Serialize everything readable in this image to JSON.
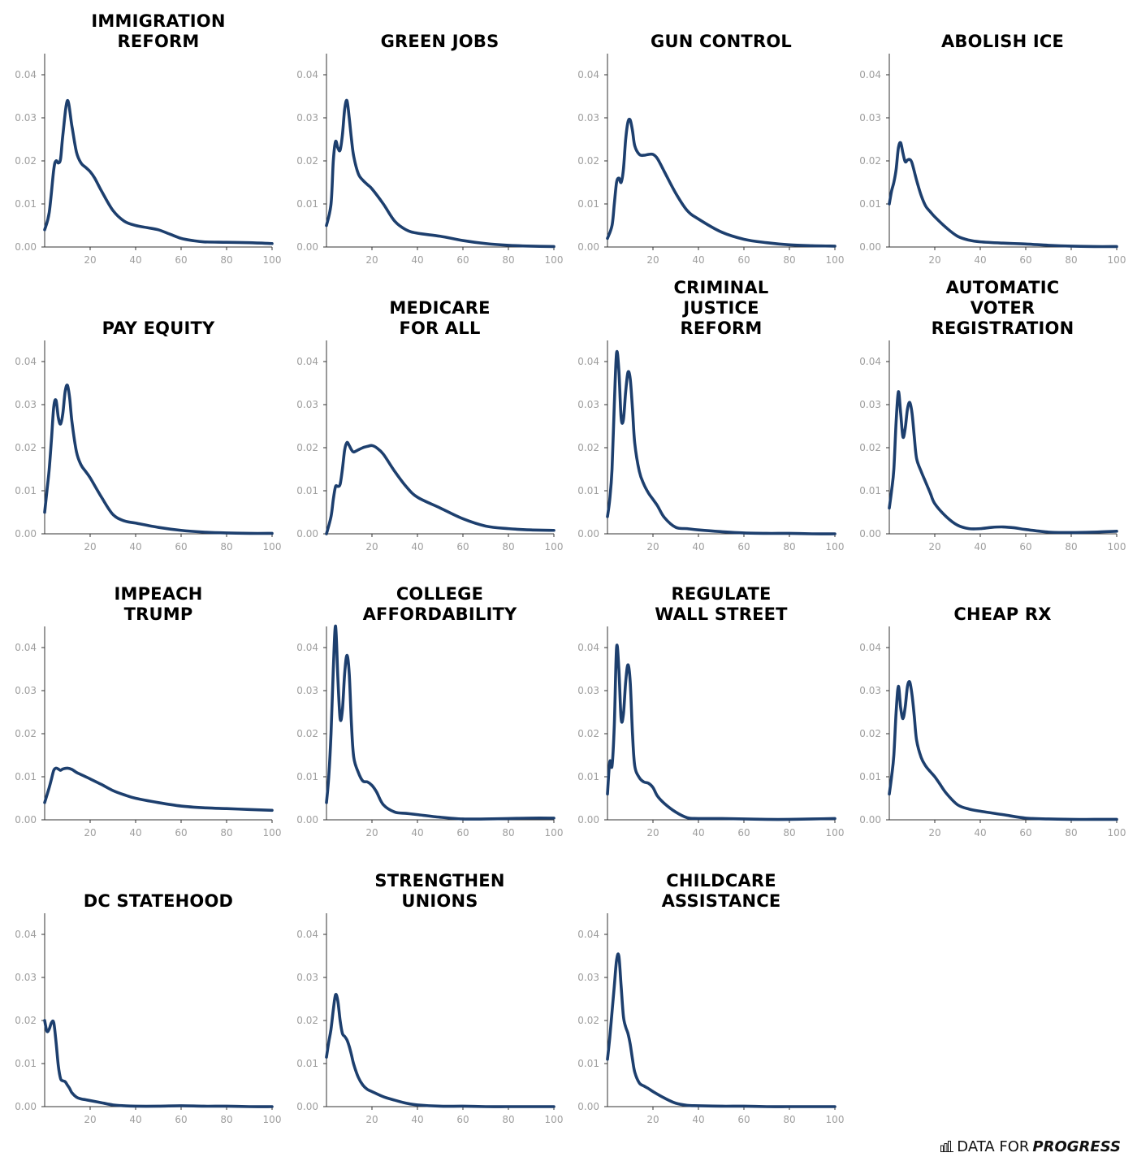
{
  "brand": {
    "prefix": "DATA FOR",
    "suffix": "PROGRESS",
    "icon": "bar-chart-icon"
  },
  "colors": {
    "line": "#1d3f6e",
    "axis": "#333333",
    "tick": "#9e9e9e"
  },
  "chart_data": [
    {
      "type": "line",
      "title": "IMMIGRATION\nREFORM",
      "xlim": [
        0,
        100
      ],
      "ylim": [
        0,
        0.045
      ],
      "xticks": [
        20,
        40,
        60,
        80,
        100
      ],
      "yticks": [
        "0.00",
        "0.01",
        "0.02",
        "0.03",
        "0.04"
      ],
      "x": [
        0,
        2,
        4,
        5,
        6,
        7,
        8,
        10,
        12,
        14,
        16,
        18,
        20,
        22,
        25,
        30,
        35,
        40,
        45,
        50,
        55,
        60,
        65,
        70,
        80,
        90,
        100
      ],
      "y": [
        0.004,
        0.008,
        0.018,
        0.02,
        0.0195,
        0.0205,
        0.026,
        0.034,
        0.028,
        0.022,
        0.0195,
        0.0185,
        0.0175,
        0.016,
        0.013,
        0.0085,
        0.006,
        0.005,
        0.0045,
        0.004,
        0.003,
        0.002,
        0.0015,
        0.0012,
        0.0011,
        0.001,
        0.0008
      ]
    },
    {
      "type": "line",
      "title": "GREEN JOBS",
      "xlim": [
        0,
        100
      ],
      "ylim": [
        0,
        0.045
      ],
      "xticks": [
        20,
        40,
        60,
        80,
        100
      ],
      "yticks": [
        "0.00",
        "0.01",
        "0.02",
        "0.03",
        "0.04"
      ],
      "x": [
        0,
        2,
        3,
        4,
        5,
        6,
        7,
        8,
        9,
        10,
        11,
        12,
        14,
        16,
        18,
        20,
        25,
        30,
        35,
        40,
        50,
        60,
        70,
        80,
        90,
        100
      ],
      "y": [
        0.005,
        0.01,
        0.02,
        0.0245,
        0.023,
        0.0225,
        0.026,
        0.032,
        0.034,
        0.03,
        0.025,
        0.021,
        0.017,
        0.0155,
        0.0145,
        0.0135,
        0.01,
        0.006,
        0.004,
        0.0032,
        0.0025,
        0.0015,
        0.0008,
        0.0004,
        0.0002,
        0.0001
      ]
    },
    {
      "type": "line",
      "title": "GUN CONTROL",
      "xlim": [
        0,
        100
      ],
      "ylim": [
        0,
        0.045
      ],
      "xticks": [
        20,
        40,
        60,
        80,
        100
      ],
      "yticks": [
        "0.00",
        "0.01",
        "0.02",
        "0.03",
        "0.04"
      ],
      "x": [
        0,
        2,
        3,
        4,
        5,
        6,
        7,
        8,
        9,
        10,
        11,
        12,
        14,
        16,
        18,
        20,
        22,
        25,
        30,
        35,
        40,
        50,
        60,
        70,
        80,
        90,
        100
      ],
      "y": [
        0.002,
        0.005,
        0.01,
        0.015,
        0.016,
        0.015,
        0.018,
        0.025,
        0.029,
        0.0295,
        0.027,
        0.0235,
        0.0215,
        0.0213,
        0.0215,
        0.0215,
        0.0205,
        0.0175,
        0.0125,
        0.0085,
        0.0065,
        0.0035,
        0.0018,
        0.001,
        0.0005,
        0.0003,
        0.0002
      ]
    },
    {
      "type": "line",
      "title": "ABOLISH ICE",
      "xlim": [
        0,
        100
      ],
      "ylim": [
        0,
        0.045
      ],
      "xticks": [
        20,
        40,
        60,
        80,
        100
      ],
      "yticks": [
        "0.00",
        "0.01",
        "0.02",
        "0.03",
        "0.04"
      ],
      "x": [
        0,
        1,
        2,
        3,
        4,
        5,
        6,
        7,
        8,
        9,
        10,
        12,
        14,
        16,
        18,
        20,
        25,
        30,
        35,
        40,
        50,
        60,
        70,
        80,
        90,
        100
      ],
      "y": [
        0.01,
        0.013,
        0.015,
        0.018,
        0.023,
        0.0242,
        0.0218,
        0.0198,
        0.0202,
        0.0203,
        0.0195,
        0.0155,
        0.012,
        0.0095,
        0.0082,
        0.007,
        0.0045,
        0.0025,
        0.0016,
        0.0012,
        0.0009,
        0.0007,
        0.0004,
        0.0002,
        0.0001,
        0.0001
      ]
    },
    {
      "type": "line",
      "title": "PAY EQUITY",
      "xlim": [
        0,
        100
      ],
      "ylim": [
        0,
        0.045
      ],
      "xticks": [
        20,
        40,
        60,
        80,
        100
      ],
      "yticks": [
        "0.00",
        "0.01",
        "0.02",
        "0.03",
        "0.04"
      ],
      "x": [
        0,
        1,
        2,
        3,
        4,
        5,
        6,
        7,
        8,
        9,
        10,
        11,
        12,
        14,
        16,
        18,
        20,
        25,
        30,
        35,
        40,
        50,
        60,
        70,
        80,
        90,
        100
      ],
      "y": [
        0.005,
        0.01,
        0.015,
        0.022,
        0.0295,
        0.031,
        0.027,
        0.0255,
        0.028,
        0.033,
        0.0345,
        0.0315,
        0.026,
        0.019,
        0.016,
        0.0145,
        0.013,
        0.0085,
        0.0045,
        0.003,
        0.0025,
        0.0015,
        0.0008,
        0.0004,
        0.0002,
        0.0001,
        0.0001
      ]
    },
    {
      "type": "line",
      "title": "MEDICARE\nFOR ALL",
      "xlim": [
        0,
        100
      ],
      "ylim": [
        0,
        0.045
      ],
      "xticks": [
        20,
        40,
        60,
        80,
        100
      ],
      "yticks": [
        "0.00",
        "0.01",
        "0.02",
        "0.03",
        "0.04"
      ],
      "x": [
        0,
        2,
        3,
        4,
        5,
        6,
        7,
        8,
        9,
        10,
        11,
        12,
        14,
        16,
        18,
        20,
        22,
        25,
        30,
        35,
        40,
        50,
        60,
        70,
        80,
        90,
        100
      ],
      "y": [
        0.0,
        0.004,
        0.008,
        0.011,
        0.011,
        0.0115,
        0.015,
        0.0195,
        0.0212,
        0.0205,
        0.0195,
        0.019,
        0.0195,
        0.02,
        0.0203,
        0.0205,
        0.02,
        0.0185,
        0.0145,
        0.011,
        0.0085,
        0.006,
        0.0035,
        0.0018,
        0.0012,
        0.0009,
        0.0008
      ]
    },
    {
      "type": "line",
      "title": "CRIMINAL\nJUSTICE\nREFORM",
      "xlim": [
        0,
        100
      ],
      "ylim": [
        0,
        0.045
      ],
      "xticks": [
        20,
        40,
        60,
        80,
        100
      ],
      "yticks": [
        "0.00",
        "0.01",
        "0.02",
        "0.03",
        "0.04"
      ],
      "x": [
        0,
        1,
        2,
        3,
        4,
        5,
        6,
        7,
        8,
        9,
        10,
        11,
        12,
        14,
        16,
        18,
        20,
        22,
        25,
        30,
        35,
        40,
        50,
        60,
        70,
        80,
        90,
        100
      ],
      "y": [
        0.004,
        0.008,
        0.015,
        0.03,
        0.042,
        0.038,
        0.027,
        0.0265,
        0.033,
        0.0375,
        0.036,
        0.029,
        0.021,
        0.0145,
        0.0115,
        0.0095,
        0.008,
        0.0065,
        0.0038,
        0.0015,
        0.0012,
        0.0009,
        0.0005,
        0.0002,
        0.0001,
        0.0001,
        0.0,
        0.0
      ]
    },
    {
      "type": "line",
      "title": "AUTOMATIC\nVOTER\nREGISTRATION",
      "xlim": [
        0,
        100
      ],
      "ylim": [
        0,
        0.045
      ],
      "xticks": [
        20,
        40,
        60,
        80,
        100
      ],
      "yticks": [
        "0.00",
        "0.01",
        "0.02",
        "0.03",
        "0.04"
      ],
      "x": [
        0,
        1,
        2,
        3,
        4,
        5,
        6,
        7,
        8,
        9,
        10,
        11,
        12,
        14,
        16,
        18,
        20,
        25,
        30,
        35,
        40,
        45,
        50,
        55,
        60,
        70,
        80,
        90,
        100
      ],
      "y": [
        0.006,
        0.01,
        0.015,
        0.026,
        0.033,
        0.028,
        0.0225,
        0.0245,
        0.029,
        0.0305,
        0.028,
        0.0225,
        0.0175,
        0.0145,
        0.012,
        0.0095,
        0.007,
        0.004,
        0.002,
        0.0012,
        0.0012,
        0.0015,
        0.0016,
        0.0014,
        0.001,
        0.0004,
        0.0003,
        0.0004,
        0.0006
      ]
    },
    {
      "type": "line",
      "title": "IMPEACH\nTRUMP",
      "xlim": [
        0,
        100
      ],
      "ylim": [
        0,
        0.045
      ],
      "xticks": [
        20,
        40,
        60,
        80,
        100
      ],
      "yticks": [
        "0.00",
        "0.01",
        "0.02",
        "0.03",
        "0.04"
      ],
      "x": [
        0,
        2,
        3,
        4,
        5,
        6,
        7,
        8,
        10,
        12,
        14,
        16,
        18,
        20,
        25,
        30,
        35,
        40,
        50,
        60,
        70,
        80,
        90,
        100
      ],
      "y": [
        0.004,
        0.0075,
        0.0095,
        0.0115,
        0.012,
        0.0118,
        0.0115,
        0.0118,
        0.012,
        0.0117,
        0.011,
        0.0105,
        0.01,
        0.0095,
        0.0082,
        0.0068,
        0.0058,
        0.005,
        0.004,
        0.0032,
        0.0028,
        0.0026,
        0.0024,
        0.0022
      ]
    },
    {
      "type": "line",
      "title": "COLLEGE\nAFFORDABILITY",
      "xlim": [
        0,
        100
      ],
      "ylim": [
        0,
        0.045
      ],
      "xticks": [
        20,
        40,
        60,
        80,
        100
      ],
      "yticks": [
        "0.00",
        "0.01",
        "0.02",
        "0.03",
        "0.04"
      ],
      "x": [
        0,
        1,
        2,
        3,
        4,
        5,
        6,
        7,
        8,
        9,
        10,
        11,
        12,
        14,
        16,
        18,
        20,
        22,
        25,
        30,
        35,
        40,
        50,
        60,
        70,
        80,
        90,
        100
      ],
      "y": [
        0.004,
        0.01,
        0.02,
        0.035,
        0.045,
        0.033,
        0.0235,
        0.0255,
        0.034,
        0.0382,
        0.034,
        0.022,
        0.0145,
        0.011,
        0.009,
        0.0088,
        0.008,
        0.0065,
        0.0035,
        0.0018,
        0.0015,
        0.0012,
        0.0006,
        0.0002,
        0.0002,
        0.0003,
        0.0004,
        0.0004
      ]
    },
    {
      "type": "line",
      "title": "REGULATE\nWALL STREET",
      "xlim": [
        0,
        100
      ],
      "ylim": [
        0,
        0.045
      ],
      "xticks": [
        20,
        40,
        60,
        80,
        100
      ],
      "yticks": [
        "0.00",
        "0.01",
        "0.02",
        "0.03",
        "0.04"
      ],
      "x": [
        0,
        1,
        2,
        3,
        4,
        5,
        6,
        7,
        8,
        9,
        10,
        11,
        12,
        14,
        16,
        18,
        20,
        22,
        25,
        30,
        35,
        40,
        50,
        60,
        70,
        80,
        90,
        100
      ],
      "y": [
        0.006,
        0.0135,
        0.0125,
        0.022,
        0.04,
        0.035,
        0.0235,
        0.0245,
        0.032,
        0.036,
        0.032,
        0.02,
        0.0125,
        0.0098,
        0.0088,
        0.0085,
        0.0075,
        0.0055,
        0.0038,
        0.0018,
        0.0005,
        0.0003,
        0.0003,
        0.0002,
        0.0001,
        0.0001,
        0.0002,
        0.0003
      ]
    },
    {
      "type": "line",
      "title": "CHEAP RX",
      "xlim": [
        0,
        100
      ],
      "ylim": [
        0,
        0.045
      ],
      "xticks": [
        20,
        40,
        60,
        80,
        100
      ],
      "yticks": [
        "0.00",
        "0.01",
        "0.02",
        "0.03",
        "0.04"
      ],
      "x": [
        0,
        1,
        2,
        3,
        4,
        5,
        6,
        7,
        8,
        9,
        10,
        11,
        12,
        14,
        16,
        18,
        20,
        22,
        25,
        30,
        35,
        40,
        50,
        60,
        70,
        80,
        90,
        100
      ],
      "y": [
        0.006,
        0.01,
        0.015,
        0.025,
        0.031,
        0.026,
        0.0235,
        0.0262,
        0.031,
        0.032,
        0.029,
        0.024,
        0.0185,
        0.0145,
        0.0125,
        0.0112,
        0.01,
        0.0085,
        0.0062,
        0.0035,
        0.0025,
        0.002,
        0.0012,
        0.0004,
        0.0002,
        0.0001,
        0.0001,
        0.0001
      ]
    },
    {
      "type": "line",
      "title": "DC STATEHOOD",
      "xlim": [
        0,
        100
      ],
      "ylim": [
        0,
        0.045
      ],
      "xticks": [
        20,
        40,
        60,
        80,
        100
      ],
      "yticks": [
        "0.00",
        "0.01",
        "0.02",
        "0.03",
        "0.04"
      ],
      "x": [
        0,
        1,
        2,
        3,
        4,
        5,
        6,
        7,
        8,
        9,
        10,
        11,
        12,
        14,
        16,
        18,
        20,
        25,
        30,
        35,
        40,
        50,
        60,
        70,
        80,
        90,
        100
      ],
      "y": [
        0.02,
        0.0175,
        0.018,
        0.0195,
        0.0195,
        0.015,
        0.0095,
        0.0065,
        0.006,
        0.0058,
        0.005,
        0.0042,
        0.0032,
        0.0022,
        0.0018,
        0.0016,
        0.0014,
        0.0009,
        0.0004,
        0.0002,
        0.0001,
        0.0001,
        0.0002,
        0.0001,
        0.0001,
        0.0,
        0.0
      ]
    },
    {
      "type": "line",
      "title": "STRENGTHEN\nUNIONS",
      "xlim": [
        0,
        100
      ],
      "ylim": [
        0,
        0.045
      ],
      "xticks": [
        20,
        40,
        60,
        80,
        100
      ],
      "yticks": [
        "0.00",
        "0.01",
        "0.02",
        "0.03",
        "0.04"
      ],
      "x": [
        0,
        1,
        2,
        3,
        4,
        5,
        6,
        7,
        8,
        9,
        10,
        11,
        12,
        14,
        16,
        18,
        20,
        25,
        30,
        35,
        40,
        50,
        60,
        70,
        80,
        90,
        100
      ],
      "y": [
        0.0115,
        0.015,
        0.018,
        0.0225,
        0.026,
        0.0245,
        0.02,
        0.017,
        0.0163,
        0.0155,
        0.014,
        0.012,
        0.0098,
        0.0068,
        0.005,
        0.004,
        0.0035,
        0.0023,
        0.0015,
        0.0008,
        0.0004,
        0.0001,
        0.0001,
        0.0,
        0.0,
        0.0,
        0.0
      ]
    },
    {
      "type": "line",
      "title": "CHILDCARE\nASSISTANCE",
      "xlim": [
        0,
        100
      ],
      "ylim": [
        0,
        0.045
      ],
      "xticks": [
        20,
        40,
        60,
        80,
        100
      ],
      "yticks": [
        "0.00",
        "0.01",
        "0.02",
        "0.03",
        "0.04"
      ],
      "x": [
        0,
        1,
        2,
        3,
        4,
        5,
        6,
        7,
        8,
        9,
        10,
        11,
        12,
        14,
        16,
        18,
        20,
        25,
        30,
        35,
        40,
        50,
        60,
        70,
        80,
        90,
        100
      ],
      "y": [
        0.011,
        0.016,
        0.022,
        0.028,
        0.034,
        0.035,
        0.028,
        0.021,
        0.0185,
        0.017,
        0.0145,
        0.011,
        0.008,
        0.0055,
        0.0048,
        0.0042,
        0.0035,
        0.002,
        0.0008,
        0.0003,
        0.0002,
        0.0001,
        0.0001,
        0.0,
        0.0,
        0.0,
        0.0
      ]
    }
  ]
}
